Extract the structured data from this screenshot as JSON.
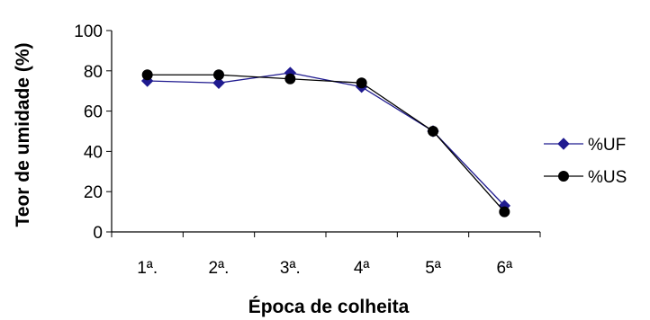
{
  "chart_data": {
    "type": "line",
    "title": "",
    "xlabel": "Época de colheita",
    "ylabel": "Teor de umidade (%)",
    "categories": [
      "1ª.",
      "2ª.",
      "3ª.",
      "4ª",
      "5ª",
      "6ª"
    ],
    "ylim": [
      0,
      100
    ],
    "yticks": [
      "0",
      "20",
      "40",
      "60",
      "80",
      "100"
    ],
    "grid": false,
    "legend_position": "right",
    "series": [
      {
        "name": "%UF",
        "marker": "diamond",
        "color": "#1f1a8f",
        "values": [
          75,
          74,
          79,
          72,
          50,
          13
        ]
      },
      {
        "name": "%US",
        "marker": "circle",
        "color": "#000000",
        "values": [
          78,
          78,
          76,
          74,
          50,
          10
        ]
      }
    ]
  }
}
